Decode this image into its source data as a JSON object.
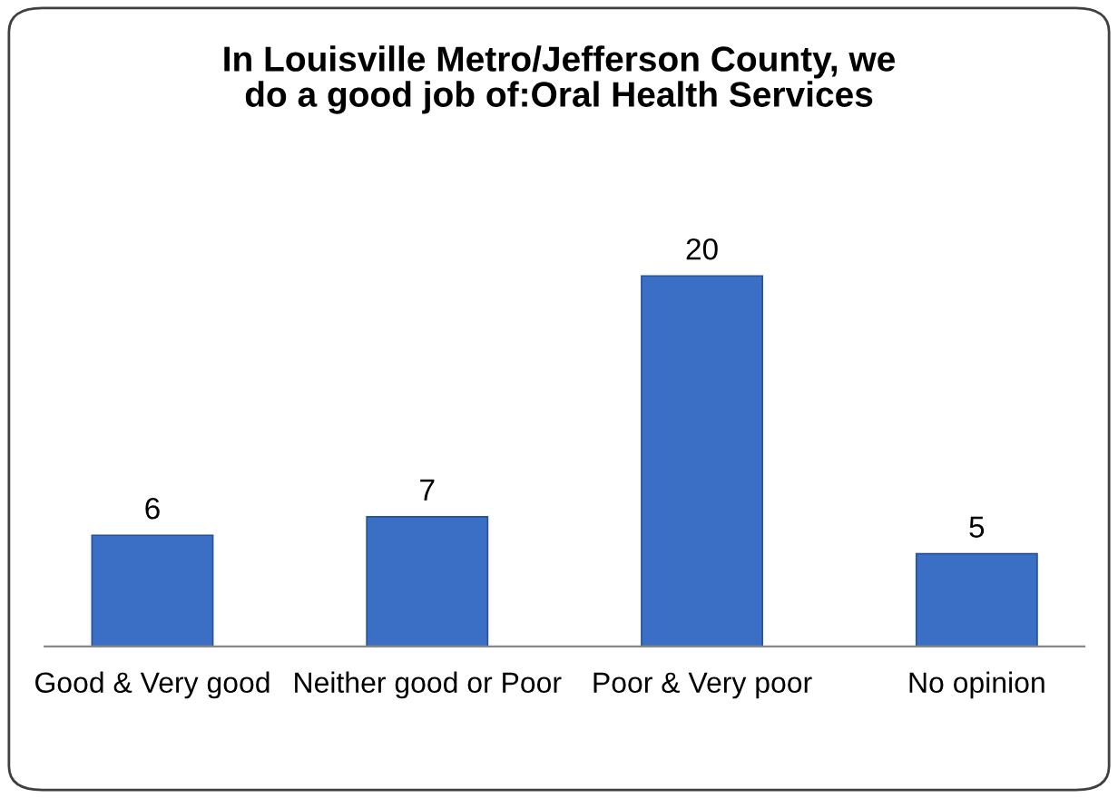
{
  "chart_data": {
    "type": "bar",
    "title": "In Louisville Metro/Jefferson County, we\ndo a good job of:Oral Health Services",
    "categories": [
      "Good & Very good",
      "Neither good or Poor",
      "Poor & Very poor",
      "No opinion"
    ],
    "values": [
      6,
      7,
      20,
      5
    ],
    "color": "#3b6fc6",
    "data_labels": true,
    "grid": false,
    "legend": false
  }
}
